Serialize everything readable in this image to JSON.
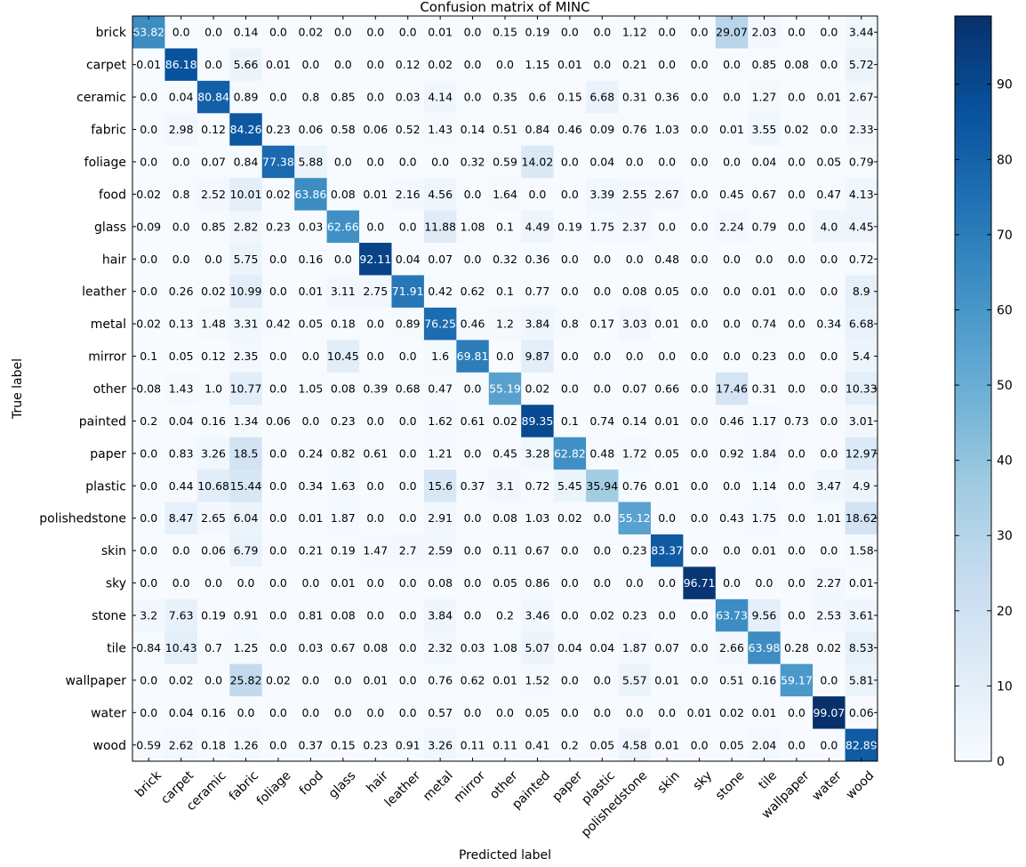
{
  "chart_data": {
    "type": "heatmap",
    "title": "Confusion matrix of MINC",
    "xlabel": "Predicted label",
    "ylabel": "True label",
    "row_labels": [
      "brick",
      "carpet",
      "ceramic",
      "fabric",
      "foliage",
      "food",
      "glass",
      "hair",
      "leather",
      "metal",
      "mirror",
      "other",
      "painted",
      "paper",
      "plastic",
      "polishedstone",
      "skin",
      "sky",
      "stone",
      "tile",
      "wallpaper",
      "water",
      "wood"
    ],
    "col_labels": [
      "brick",
      "carpet",
      "ceramic",
      "fabric",
      "foliage",
      "food",
      "glass",
      "hair",
      "leather",
      "metal",
      "mirror",
      "other",
      "painted",
      "paper",
      "plastic",
      "polishedstone",
      "skin",
      "sky",
      "stone",
      "tile",
      "wallpaper",
      "water",
      "wood"
    ],
    "cells": [
      [
        "63.82",
        "0.0",
        "0.0",
        "0.14",
        "0.0",
        "0.02",
        "0.0",
        "0.0",
        "0.0",
        "0.01",
        "0.0",
        "0.15",
        "0.19",
        "0.0",
        "0.0",
        "1.12",
        "0.0",
        "0.0",
        "29.07",
        "2.03",
        "0.0",
        "0.0",
        "3.44"
      ],
      [
        "0.01",
        "86.18",
        "0.0",
        "5.66",
        "0.01",
        "0.0",
        "0.0",
        "0.0",
        "0.12",
        "0.02",
        "0.0",
        "0.0",
        "1.15",
        "0.01",
        "0.0",
        "0.21",
        "0.0",
        "0.0",
        "0.0",
        "0.85",
        "0.08",
        "0.0",
        "5.72"
      ],
      [
        "0.0",
        "0.04",
        "80.84",
        "0.89",
        "0.0",
        "0.8",
        "0.85",
        "0.0",
        "0.03",
        "4.14",
        "0.0",
        "0.35",
        "0.6",
        "0.15",
        "6.68",
        "0.31",
        "0.36",
        "0.0",
        "0.0",
        "1.27",
        "0.0",
        "0.01",
        "2.67"
      ],
      [
        "0.0",
        "2.98",
        "0.12",
        "84.26",
        "0.23",
        "0.06",
        "0.58",
        "0.06",
        "0.52",
        "1.43",
        "0.14",
        "0.51",
        "0.84",
        "0.46",
        "0.09",
        "0.76",
        "1.03",
        "0.0",
        "0.01",
        "3.55",
        "0.02",
        "0.0",
        "2.33"
      ],
      [
        "0.0",
        "0.0",
        "0.07",
        "0.84",
        "77.38",
        "5.88",
        "0.0",
        "0.0",
        "0.0",
        "0.0",
        "0.32",
        "0.59",
        "14.02",
        "0.0",
        "0.04",
        "0.0",
        "0.0",
        "0.0",
        "0.0",
        "0.04",
        "0.0",
        "0.05",
        "0.79"
      ],
      [
        "0.02",
        "0.8",
        "2.52",
        "10.01",
        "0.02",
        "63.86",
        "0.08",
        "0.01",
        "2.16",
        "4.56",
        "0.0",
        "1.64",
        "0.0",
        "0.0",
        "3.39",
        "2.55",
        "2.67",
        "0.0",
        "0.45",
        "0.67",
        "0.0",
        "0.47",
        "4.13"
      ],
      [
        "0.09",
        "0.0",
        "0.85",
        "2.82",
        "0.23",
        "0.03",
        "62.66",
        "0.0",
        "0.0",
        "11.88",
        "1.08",
        "0.1",
        "4.49",
        "0.19",
        "1.75",
        "2.37",
        "0.0",
        "0.0",
        "2.24",
        "0.79",
        "0.0",
        "4.0",
        "4.45"
      ],
      [
        "0.0",
        "0.0",
        "0.0",
        "5.75",
        "0.0",
        "0.16",
        "0.0",
        "92.11",
        "0.04",
        "0.07",
        "0.0",
        "0.32",
        "0.36",
        "0.0",
        "0.0",
        "0.0",
        "0.48",
        "0.0",
        "0.0",
        "0.0",
        "0.0",
        "0.0",
        "0.72"
      ],
      [
        "0.0",
        "0.26",
        "0.02",
        "10.99",
        "0.0",
        "0.01",
        "3.11",
        "2.75",
        "71.91",
        "0.42",
        "0.62",
        "0.1",
        "0.77",
        "0.0",
        "0.0",
        "0.08",
        "0.05",
        "0.0",
        "0.0",
        "0.01",
        "0.0",
        "0.0",
        "8.9"
      ],
      [
        "0.02",
        "0.13",
        "1.48",
        "3.31",
        "0.42",
        "0.05",
        "0.18",
        "0.0",
        "0.89",
        "76.25",
        "0.46",
        "1.2",
        "3.84",
        "0.8",
        "0.17",
        "3.03",
        "0.01",
        "0.0",
        "0.0",
        "0.74",
        "0.0",
        "0.34",
        "6.68"
      ],
      [
        "0.1",
        "0.05",
        "0.12",
        "2.35",
        "0.0",
        "0.0",
        "10.45",
        "0.0",
        "0.0",
        "1.6",
        "69.81",
        "0.0",
        "9.87",
        "0.0",
        "0.0",
        "0.0",
        "0.0",
        "0.0",
        "0.0",
        "0.23",
        "0.0",
        "0.0",
        "5.4"
      ],
      [
        "0.08",
        "1.43",
        "1.0",
        "10.77",
        "0.0",
        "1.05",
        "0.08",
        "0.39",
        "0.68",
        "0.47",
        "0.0",
        "55.19",
        "0.02",
        "0.0",
        "0.0",
        "0.07",
        "0.66",
        "0.0",
        "17.46",
        "0.31",
        "0.0",
        "0.0",
        "10.33"
      ],
      [
        "0.2",
        "0.04",
        "0.16",
        "1.34",
        "0.06",
        "0.0",
        "0.23",
        "0.0",
        "0.0",
        "1.62",
        "0.61",
        "0.02",
        "89.35",
        "0.1",
        "0.74",
        "0.14",
        "0.01",
        "0.0",
        "0.46",
        "1.17",
        "0.73",
        "0.0",
        "3.01"
      ],
      [
        "0.0",
        "0.83",
        "3.26",
        "18.5",
        "0.0",
        "0.24",
        "0.82",
        "0.61",
        "0.0",
        "1.21",
        "0.0",
        "0.45",
        "3.28",
        "62.82",
        "0.48",
        "1.72",
        "0.05",
        "0.0",
        "0.92",
        "1.84",
        "0.0",
        "0.0",
        "12.97"
      ],
      [
        "0.0",
        "0.44",
        "10.68",
        "15.44",
        "0.0",
        "0.34",
        "1.63",
        "0.0",
        "0.0",
        "15.6",
        "0.37",
        "3.1",
        "0.72",
        "5.45",
        "35.94",
        "0.76",
        "0.01",
        "0.0",
        "0.0",
        "1.14",
        "0.0",
        "3.47",
        "4.9"
      ],
      [
        "0.0",
        "8.47",
        "2.65",
        "6.04",
        "0.0",
        "0.01",
        "1.87",
        "0.0",
        "0.0",
        "2.91",
        "0.0",
        "0.08",
        "1.03",
        "0.02",
        "0.0",
        "55.12",
        "0.0",
        "0.0",
        "0.43",
        "1.75",
        "0.0",
        "1.01",
        "18.62"
      ],
      [
        "0.0",
        "0.0",
        "0.06",
        "6.79",
        "0.0",
        "0.21",
        "0.19",
        "1.47",
        "2.7",
        "2.59",
        "0.0",
        "0.11",
        "0.67",
        "0.0",
        "0.0",
        "0.23",
        "83.37",
        "0.0",
        "0.0",
        "0.01",
        "0.0",
        "0.0",
        "1.58"
      ],
      [
        "0.0",
        "0.0",
        "0.0",
        "0.0",
        "0.0",
        "0.0",
        "0.01",
        "0.0",
        "0.0",
        "0.08",
        "0.0",
        "0.05",
        "0.86",
        "0.0",
        "0.0",
        "0.0",
        "0.0",
        "96.71",
        "0.0",
        "0.0",
        "0.0",
        "2.27",
        "0.01"
      ],
      [
        "3.2",
        "7.63",
        "0.19",
        "0.91",
        "0.0",
        "0.81",
        "0.08",
        "0.0",
        "0.0",
        "3.84",
        "0.0",
        "0.2",
        "3.46",
        "0.0",
        "0.02",
        "0.23",
        "0.0",
        "0.0",
        "63.73",
        "9.56",
        "0.0",
        "2.53",
        "3.61"
      ],
      [
        "0.84",
        "10.43",
        "0.7",
        "1.25",
        "0.0",
        "0.03",
        "0.67",
        "0.08",
        "0.0",
        "2.32",
        "0.03",
        "1.08",
        "5.07",
        "0.04",
        "0.04",
        "1.87",
        "0.07",
        "0.0",
        "2.66",
        "63.98",
        "0.28",
        "0.02",
        "8.53"
      ],
      [
        "0.0",
        "0.02",
        "0.0",
        "25.82",
        "0.02",
        "0.0",
        "0.0",
        "0.01",
        "0.0",
        "0.76",
        "0.62",
        "0.01",
        "1.52",
        "0.0",
        "0.0",
        "5.57",
        "0.01",
        "0.0",
        "0.51",
        "0.16",
        "59.17",
        "0.0",
        "5.81"
      ],
      [
        "0.0",
        "0.04",
        "0.16",
        "0.0",
        "0.0",
        "0.0",
        "0.0",
        "0.0",
        "0.0",
        "0.57",
        "0.0",
        "0.0",
        "0.05",
        "0.0",
        "0.0",
        "0.0",
        "0.0",
        "0.01",
        "0.02",
        "0.01",
        "0.0",
        "99.07",
        "0.06"
      ],
      [
        "0.59",
        "2.62",
        "0.18",
        "1.26",
        "0.0",
        "0.37",
        "0.15",
        "0.23",
        "0.91",
        "3.26",
        "0.11",
        "0.11",
        "0.41",
        "0.2",
        "0.05",
        "4.58",
        "0.01",
        "0.0",
        "0.05",
        "2.04",
        "0.0",
        "0.0",
        "82.89"
      ]
    ],
    "colorbar": {
      "min": 0,
      "max": 99.07,
      "ticks": [
        0,
        10,
        20,
        30,
        40,
        50,
        60,
        70,
        80,
        90
      ],
      "colormap": "Blues",
      "colors": [
        "#f7fbff",
        "#deebf7",
        "#c6dbef",
        "#9ecae1",
        "#6baed6",
        "#4292c6",
        "#2171b5",
        "#08519c",
        "#08306b"
      ]
    },
    "grid": false
  }
}
